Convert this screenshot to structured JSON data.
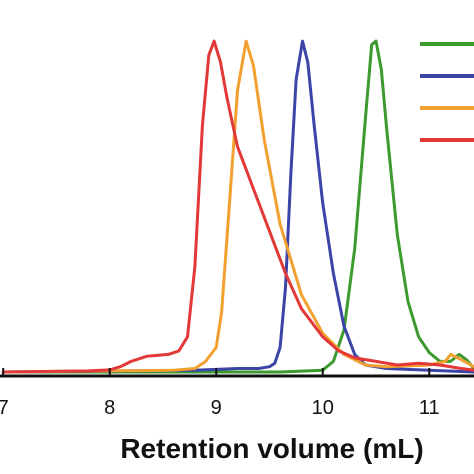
{
  "chart_data": {
    "type": "line",
    "xlabel": "Retention volume (mL)",
    "ylabel": "",
    "title": "",
    "xlim": [
      6.97,
      11.42
    ],
    "ylim": [
      0,
      1.0
    ],
    "x_ticks": [
      7,
      8,
      9,
      10,
      11
    ],
    "x_tick_labels": [
      "7",
      "8",
      "9",
      "10",
      "11"
    ],
    "legend_position": "top-right",
    "grid": false,
    "series": [
      {
        "color": "#3d9a2f",
        "points": [
          [
            7.0,
            0
          ],
          [
            9.6,
            0
          ],
          [
            10.0,
            0.005
          ],
          [
            10.1,
            0.03
          ],
          [
            10.2,
            0.12
          ],
          [
            10.3,
            0.35
          ],
          [
            10.4,
            0.72
          ],
          [
            10.46,
            0.93
          ],
          [
            10.5,
            0.94
          ],
          [
            10.55,
            0.86
          ],
          [
            10.6,
            0.69
          ],
          [
            10.7,
            0.39
          ],
          [
            10.8,
            0.2
          ],
          [
            10.9,
            0.1
          ],
          [
            11.0,
            0.055
          ],
          [
            11.1,
            0.03
          ],
          [
            11.2,
            0.03
          ],
          [
            11.28,
            0.05
          ],
          [
            11.35,
            0.035
          ],
          [
            11.42,
            0.01
          ]
        ]
      },
      {
        "color": "#3c44a8",
        "points": [
          [
            7.0,
            0
          ],
          [
            8.8,
            0.005
          ],
          [
            9.2,
            0.01
          ],
          [
            9.4,
            0.01
          ],
          [
            9.5,
            0.015
          ],
          [
            9.55,
            0.025
          ],
          [
            9.6,
            0.07
          ],
          [
            9.65,
            0.24
          ],
          [
            9.7,
            0.56
          ],
          [
            9.75,
            0.83
          ],
          [
            9.81,
            0.94
          ],
          [
            9.86,
            0.88
          ],
          [
            9.92,
            0.7
          ],
          [
            10.0,
            0.48
          ],
          [
            10.1,
            0.28
          ],
          [
            10.2,
            0.13
          ],
          [
            10.3,
            0.05
          ],
          [
            10.4,
            0.02
          ],
          [
            10.6,
            0.01
          ],
          [
            11.0,
            0.005
          ],
          [
            11.42,
            0
          ]
        ]
      },
      {
        "color": "#f2a130",
        "points": [
          [
            7.0,
            0
          ],
          [
            8.6,
            0.005
          ],
          [
            8.8,
            0.01
          ],
          [
            8.9,
            0.03
          ],
          [
            9.0,
            0.07
          ],
          [
            9.05,
            0.17
          ],
          [
            9.12,
            0.46
          ],
          [
            9.2,
            0.8
          ],
          [
            9.28,
            0.94
          ],
          [
            9.35,
            0.87
          ],
          [
            9.45,
            0.66
          ],
          [
            9.6,
            0.42
          ],
          [
            9.8,
            0.22
          ],
          [
            10.0,
            0.11
          ],
          [
            10.2,
            0.05
          ],
          [
            10.4,
            0.02
          ],
          [
            10.6,
            0.015
          ],
          [
            11.0,
            0.02
          ],
          [
            11.15,
            0.03
          ],
          [
            11.2,
            0.05
          ],
          [
            11.3,
            0.035
          ],
          [
            11.42,
            0.015
          ]
        ]
      },
      {
        "color": "#e23838",
        "points": [
          [
            7.0,
            0
          ],
          [
            7.8,
            0.003
          ],
          [
            8.0,
            0.006
          ],
          [
            8.1,
            0.015
          ],
          [
            8.2,
            0.03
          ],
          [
            8.35,
            0.045
          ],
          [
            8.55,
            0.05
          ],
          [
            8.65,
            0.06
          ],
          [
            8.73,
            0.1
          ],
          [
            8.8,
            0.3
          ],
          [
            8.87,
            0.7
          ],
          [
            8.93,
            0.9
          ],
          [
            8.98,
            0.94
          ],
          [
            9.04,
            0.88
          ],
          [
            9.1,
            0.78
          ],
          [
            9.2,
            0.64
          ],
          [
            9.35,
            0.52
          ],
          [
            9.5,
            0.4
          ],
          [
            9.65,
            0.28
          ],
          [
            9.8,
            0.18
          ],
          [
            10.0,
            0.1
          ],
          [
            10.15,
            0.06
          ],
          [
            10.3,
            0.04
          ],
          [
            10.5,
            0.03
          ],
          [
            10.7,
            0.02
          ],
          [
            10.9,
            0.025
          ],
          [
            11.1,
            0.02
          ],
          [
            11.3,
            0.01
          ],
          [
            11.42,
            0.005
          ]
        ]
      }
    ]
  }
}
